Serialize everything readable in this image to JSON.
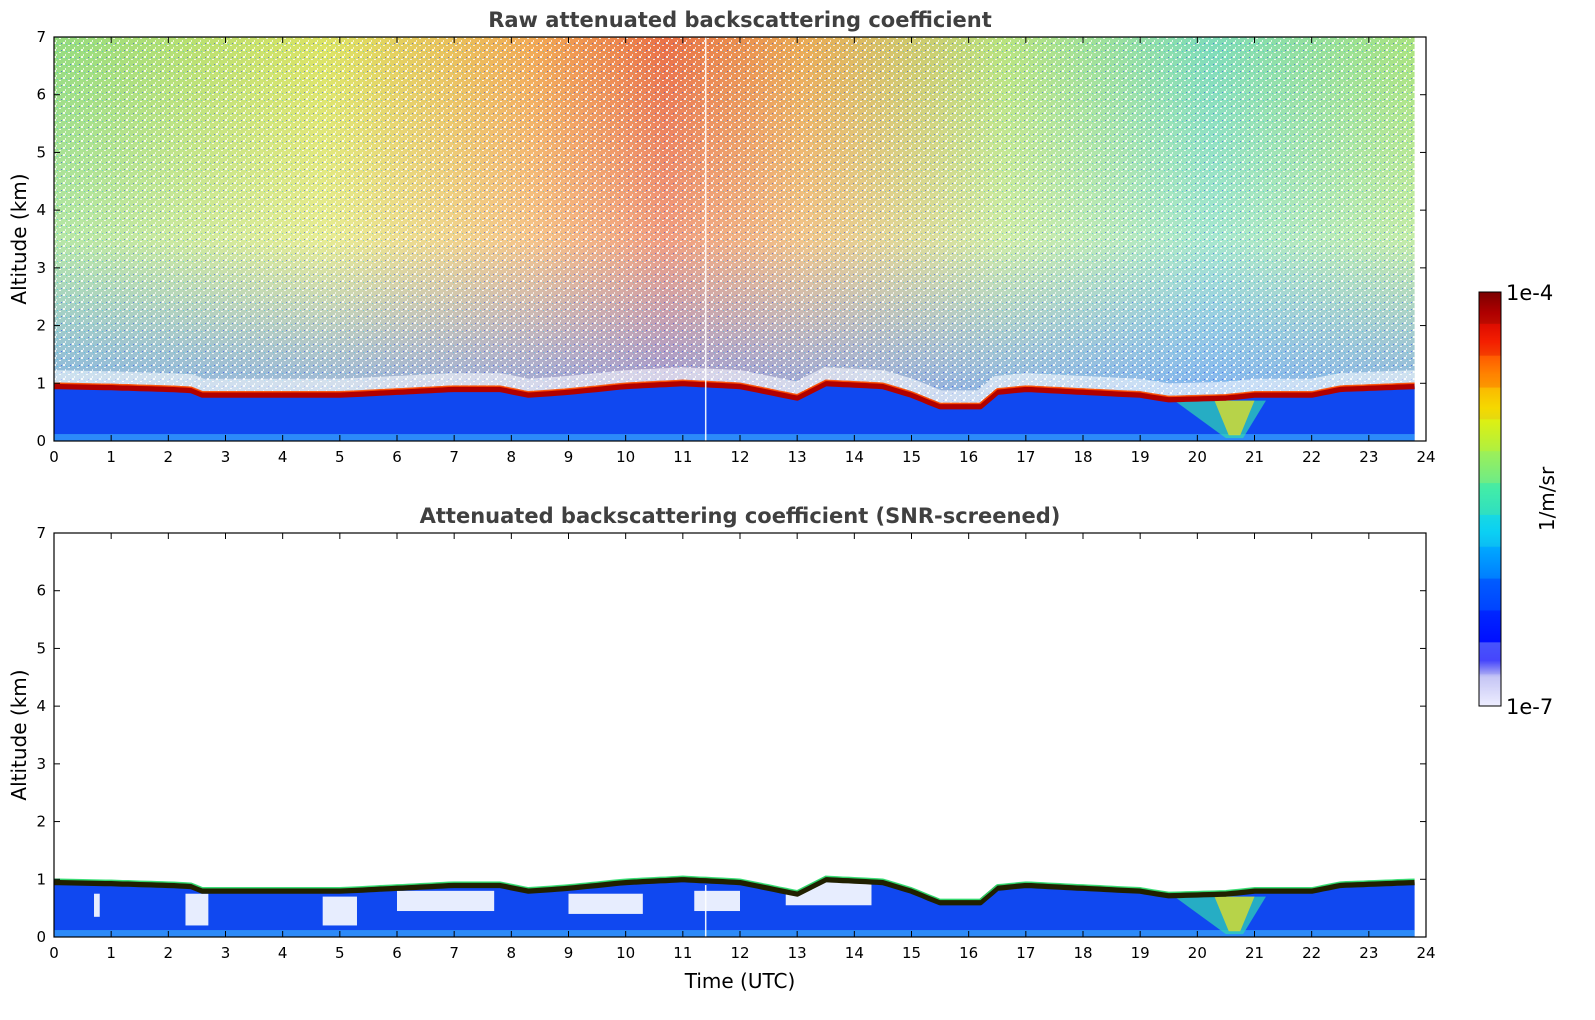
{
  "chart_data": [
    {
      "type": "heatmap",
      "title": "Raw attenuated backscattering coefficient",
      "xlabel": "",
      "ylabel": "Altitude (km)",
      "xlim": [
        0,
        24
      ],
      "ylim": [
        0,
        7
      ],
      "xticks": [
        "0",
        "1",
        "2",
        "3",
        "4",
        "5",
        "6",
        "7",
        "8",
        "9",
        "10",
        "11",
        "12",
        "13",
        "14",
        "15",
        "16",
        "17",
        "18",
        "19",
        "20",
        "21",
        "22",
        "23",
        "24"
      ],
      "yticks": [
        "0",
        "1",
        "2",
        "3",
        "4",
        "5",
        "6",
        "7"
      ],
      "data_end_hour": 23.8,
      "boundary_layer_top_km": [
        [
          0.0,
          0.95
        ],
        [
          1.0,
          0.93
        ],
        [
          2.0,
          0.9
        ],
        [
          2.4,
          0.88
        ],
        [
          2.6,
          0.8
        ],
        [
          3.0,
          0.8
        ],
        [
          4.0,
          0.8
        ],
        [
          5.0,
          0.8
        ],
        [
          6.0,
          0.85
        ],
        [
          7.0,
          0.9
        ],
        [
          7.8,
          0.9
        ],
        [
          8.3,
          0.8
        ],
        [
          9.0,
          0.85
        ],
        [
          10.0,
          0.95
        ],
        [
          11.0,
          1.0
        ],
        [
          12.0,
          0.95
        ],
        [
          12.5,
          0.85
        ],
        [
          13.0,
          0.75
        ],
        [
          13.5,
          1.0
        ],
        [
          14.5,
          0.95
        ],
        [
          15.0,
          0.8
        ],
        [
          15.5,
          0.6
        ],
        [
          16.2,
          0.6
        ],
        [
          16.5,
          0.85
        ],
        [
          17.0,
          0.9
        ],
        [
          18.0,
          0.85
        ],
        [
          19.0,
          0.8
        ],
        [
          19.5,
          0.72
        ],
        [
          20.5,
          0.75
        ],
        [
          21.0,
          0.8
        ],
        [
          22.0,
          0.8
        ],
        [
          22.5,
          0.9
        ],
        [
          23.8,
          0.95
        ]
      ]
    },
    {
      "type": "heatmap",
      "title": "Attenuated backscattering coefficient (SNR-screened)",
      "xlabel": "Time (UTC)",
      "ylabel": "Altitude (km)",
      "xlim": [
        0,
        24
      ],
      "ylim": [
        0,
        7
      ],
      "xticks": [
        "0",
        "1",
        "2",
        "3",
        "4",
        "5",
        "6",
        "7",
        "8",
        "9",
        "10",
        "11",
        "12",
        "13",
        "14",
        "15",
        "16",
        "17",
        "18",
        "19",
        "20",
        "21",
        "22",
        "23",
        "24"
      ],
      "yticks": [
        "0",
        "1",
        "2",
        "3",
        "4",
        "5",
        "6",
        "7"
      ],
      "data_end_hour": 23.8
    }
  ],
  "colorbar": {
    "label": "1/m/sr",
    "max_label": "1e-4",
    "min_label": "1e-7",
    "colors": [
      "#eeeeff",
      "#c8c8f5",
      "#0000ff",
      "#0050ff",
      "#00a8ff",
      "#20e0e0",
      "#60f080",
      "#c0f040",
      "#f0f000",
      "#ffb000",
      "#ff5000",
      "#e00000",
      "#800000"
    ]
  }
}
